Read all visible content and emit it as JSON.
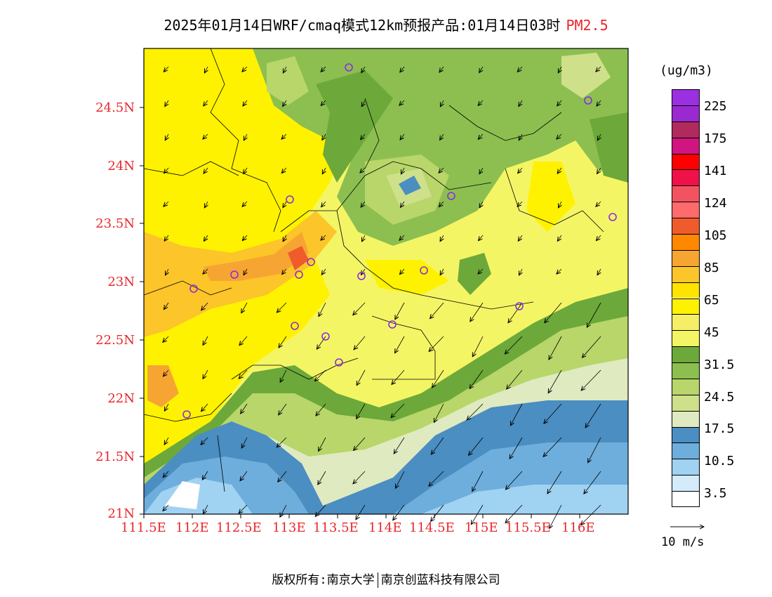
{
  "title": {
    "main": "2025年01月14日WRF/cmaq模式12km预报产品:01月14日03时",
    "pollutant": "PM2.5"
  },
  "axes": {
    "lat_labels": [
      "24.5N",
      "24N",
      "23.5N",
      "23N",
      "22.5N",
      "22N",
      "21.5N",
      "21N"
    ],
    "lon_labels": [
      "111.5E",
      "112E",
      "112.5E",
      "113E",
      "113.5E",
      "114E",
      "114.5E",
      "115E",
      "115.5E",
      "116E"
    ]
  },
  "colorbar": {
    "unit": "(ug/m3)",
    "labels": [
      "225",
      "175",
      "141",
      "124",
      "105",
      "85",
      "65",
      "45",
      "31.5",
      "24.5",
      "17.5",
      "10.5",
      "3.5"
    ],
    "colors": [
      "#9b30e0",
      "#9a2ad0",
      "#b02a5e",
      "#d01580",
      "#ff0000",
      "#f0104a",
      "#f35360",
      "#ff6a6a",
      "#f05b2c",
      "#ff8800",
      "#f7a532",
      "#fcc52a",
      "#ffe400",
      "#fff200",
      "#f7ee68",
      "#f4f565",
      "#6ca93a",
      "#8cbf50",
      "#b8d66a",
      "#cfe08a",
      "#e0eac0",
      "#4a8ec2",
      "#6eaedc",
      "#a0d2f2",
      "#d3ebfa",
      "#ffffff"
    ]
  },
  "wind_legend": {
    "label": "10 m/s"
  },
  "markers": {
    "color": "#8b2be2"
  },
  "footer": {
    "left": "版权所有:南京大学",
    "right": "南京创蓝科技有限公司"
  }
}
